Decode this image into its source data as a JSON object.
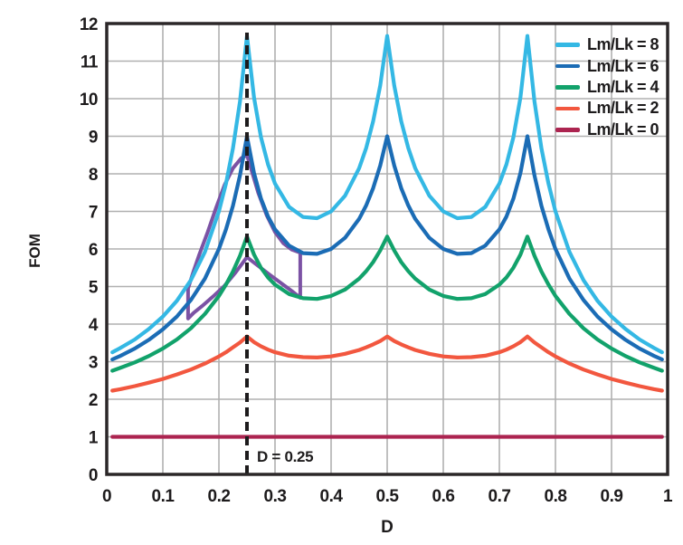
{
  "annotations": {
    "vline": {
      "x": 0.25,
      "label": "D = 0.25",
      "color": "#1d1b1c",
      "style": "dashed"
    },
    "highlight_region": {
      "color": "#7B52A4",
      "points": [
        [
          0.145,
          4.95
        ],
        [
          0.155,
          5.42
        ],
        [
          0.165,
          5.85
        ],
        [
          0.18,
          6.45
        ],
        [
          0.195,
          7.1
        ],
        [
          0.21,
          7.7
        ],
        [
          0.225,
          8.15
        ],
        [
          0.24,
          8.42
        ],
        [
          0.25,
          8.5
        ],
        [
          0.258,
          8.1
        ],
        [
          0.27,
          7.5
        ],
        [
          0.285,
          6.9
        ],
        [
          0.3,
          6.45
        ],
        [
          0.315,
          6.15
        ],
        [
          0.33,
          5.98
        ],
        [
          0.345,
          5.9
        ],
        [
          0.345,
          4.7
        ],
        [
          0.33,
          4.88
        ],
        [
          0.31,
          5.1
        ],
        [
          0.29,
          5.32
        ],
        [
          0.27,
          5.55
        ],
        [
          0.25,
          5.78
        ],
        [
          0.23,
          5.38
        ],
        [
          0.21,
          5.02
        ],
        [
          0.19,
          4.74
        ],
        [
          0.17,
          4.48
        ],
        [
          0.155,
          4.3
        ],
        [
          0.145,
          4.15
        ]
      ]
    }
  },
  "style": {
    "grid_color": "#b0b0b0",
    "border_color": "#2b2728",
    "text_color": "#1d1b1c",
    "background": "#ffffff"
  },
  "chart_data": {
    "type": "line",
    "title": "",
    "xlabel": "D",
    "ylabel": "FOM",
    "xlim": [
      0,
      1
    ],
    "ylim": [
      0,
      12
    ],
    "grid": true,
    "legend_position": "top-right",
    "x_ticks": {
      "values": [
        0,
        0.1,
        0.2,
        0.3,
        0.4,
        0.5,
        0.6,
        0.7,
        0.8,
        0.9,
        1
      ],
      "labels": [
        "0",
        "0.1",
        "0.2",
        "0.3",
        "0.4",
        "0.5",
        "0.6",
        "0.7",
        "0.8",
        "0.9",
        "1"
      ]
    },
    "y_ticks": {
      "values": [
        0,
        1,
        2,
        3,
        4,
        5,
        6,
        7,
        8,
        9,
        10,
        11,
        12
      ],
      "labels": [
        "0",
        "1",
        "2",
        "3",
        "4",
        "5",
        "6",
        "7",
        "8",
        "9",
        "10",
        "11",
        "12"
      ]
    },
    "series": [
      {
        "name": "Lm/Lk = 8",
        "color": "#34B8E4",
        "points": [
          [
            0.01,
            3.25
          ],
          [
            0.025,
            3.37
          ],
          [
            0.05,
            3.59
          ],
          [
            0.075,
            3.87
          ],
          [
            0.1,
            4.2
          ],
          [
            0.125,
            4.62
          ],
          [
            0.15,
            5.17
          ],
          [
            0.175,
            5.92
          ],
          [
            0.2,
            7.0
          ],
          [
            0.2125,
            7.74
          ],
          [
            0.225,
            8.68
          ],
          [
            0.2375,
            9.93
          ],
          [
            0.25,
            11.67
          ],
          [
            0.2625,
            10.03
          ],
          [
            0.275,
            8.97
          ],
          [
            0.2875,
            8.25
          ],
          [
            0.3,
            7.74
          ],
          [
            0.325,
            7.12
          ],
          [
            0.35,
            6.85
          ],
          [
            0.375,
            6.82
          ],
          [
            0.4,
            7.0
          ],
          [
            0.425,
            7.42
          ],
          [
            0.45,
            8.15
          ],
          [
            0.4625,
            8.69
          ],
          [
            0.475,
            9.4
          ],
          [
            0.4875,
            10.35
          ],
          [
            0.5,
            11.67
          ],
          [
            0.5125,
            10.35
          ],
          [
            0.525,
            9.4
          ],
          [
            0.5375,
            8.69
          ],
          [
            0.55,
            8.15
          ],
          [
            0.575,
            7.42
          ],
          [
            0.6,
            7.0
          ],
          [
            0.625,
            6.82
          ],
          [
            0.65,
            6.85
          ],
          [
            0.675,
            7.12
          ],
          [
            0.7,
            7.74
          ],
          [
            0.7125,
            8.25
          ],
          [
            0.725,
            8.97
          ],
          [
            0.7375,
            10.03
          ],
          [
            0.75,
            11.67
          ],
          [
            0.7625,
            9.93
          ],
          [
            0.775,
            8.68
          ],
          [
            0.7875,
            7.74
          ],
          [
            0.8,
            7.0
          ],
          [
            0.825,
            5.92
          ],
          [
            0.85,
            5.17
          ],
          [
            0.875,
            4.62
          ],
          [
            0.9,
            4.2
          ],
          [
            0.925,
            3.87
          ],
          [
            0.95,
            3.59
          ],
          [
            0.975,
            3.37
          ],
          [
            0.99,
            3.25
          ]
        ]
      },
      {
        "name": "Lm/Lk = 6",
        "color": "#1B6CB5",
        "points": [
          [
            0.01,
            3.06
          ],
          [
            0.025,
            3.16
          ],
          [
            0.05,
            3.35
          ],
          [
            0.075,
            3.58
          ],
          [
            0.1,
            3.86
          ],
          [
            0.125,
            4.2
          ],
          [
            0.15,
            4.64
          ],
          [
            0.175,
            5.21
          ],
          [
            0.2,
            6.0
          ],
          [
            0.2125,
            6.52
          ],
          [
            0.225,
            7.15
          ],
          [
            0.2375,
            7.96
          ],
          [
            0.25,
            9.0
          ],
          [
            0.2625,
            8.02
          ],
          [
            0.275,
            7.34
          ],
          [
            0.2875,
            6.86
          ],
          [
            0.3,
            6.52
          ],
          [
            0.325,
            6.09
          ],
          [
            0.35,
            5.89
          ],
          [
            0.375,
            5.87
          ],
          [
            0.4,
            6.0
          ],
          [
            0.425,
            6.3
          ],
          [
            0.45,
            6.8
          ],
          [
            0.4625,
            7.16
          ],
          [
            0.475,
            7.62
          ],
          [
            0.4875,
            8.22
          ],
          [
            0.5,
            9.0
          ],
          [
            0.5125,
            8.22
          ],
          [
            0.525,
            7.62
          ],
          [
            0.5375,
            7.16
          ],
          [
            0.55,
            6.8
          ],
          [
            0.575,
            6.3
          ],
          [
            0.6,
            6.0
          ],
          [
            0.625,
            5.87
          ],
          [
            0.65,
            5.89
          ],
          [
            0.675,
            6.09
          ],
          [
            0.7,
            6.52
          ],
          [
            0.7125,
            6.86
          ],
          [
            0.725,
            7.34
          ],
          [
            0.7375,
            8.02
          ],
          [
            0.75,
            9.0
          ],
          [
            0.7625,
            7.96
          ],
          [
            0.775,
            7.15
          ],
          [
            0.7875,
            6.52
          ],
          [
            0.8,
            6.0
          ],
          [
            0.825,
            5.21
          ],
          [
            0.85,
            4.64
          ],
          [
            0.875,
            4.2
          ],
          [
            0.9,
            3.86
          ],
          [
            0.925,
            3.58
          ],
          [
            0.95,
            3.35
          ],
          [
            0.975,
            3.16
          ],
          [
            0.99,
            3.06
          ]
        ]
      },
      {
        "name": "Lm/Lk = 4",
        "color": "#12A26B",
        "points": [
          [
            0.01,
            2.76
          ],
          [
            0.025,
            2.84
          ],
          [
            0.05,
            2.98
          ],
          [
            0.075,
            3.15
          ],
          [
            0.1,
            3.35
          ],
          [
            0.125,
            3.59
          ],
          [
            0.15,
            3.89
          ],
          [
            0.175,
            4.27
          ],
          [
            0.2,
            4.75
          ],
          [
            0.2125,
            5.05
          ],
          [
            0.225,
            5.4
          ],
          [
            0.2375,
            5.82
          ],
          [
            0.25,
            6.33
          ],
          [
            0.2625,
            5.85
          ],
          [
            0.275,
            5.5
          ],
          [
            0.2875,
            5.24
          ],
          [
            0.3,
            5.05
          ],
          [
            0.325,
            4.8
          ],
          [
            0.35,
            4.69
          ],
          [
            0.375,
            4.67
          ],
          [
            0.4,
            4.75
          ],
          [
            0.425,
            4.92
          ],
          [
            0.45,
            5.21
          ],
          [
            0.4625,
            5.41
          ],
          [
            0.475,
            5.65
          ],
          [
            0.4875,
            5.96
          ],
          [
            0.5,
            6.33
          ],
          [
            0.5125,
            5.96
          ],
          [
            0.525,
            5.65
          ],
          [
            0.5375,
            5.41
          ],
          [
            0.55,
            5.21
          ],
          [
            0.575,
            4.92
          ],
          [
            0.6,
            4.75
          ],
          [
            0.625,
            4.67
          ],
          [
            0.65,
            4.69
          ],
          [
            0.675,
            4.8
          ],
          [
            0.7,
            5.05
          ],
          [
            0.7125,
            5.24
          ],
          [
            0.725,
            5.5
          ],
          [
            0.7375,
            5.85
          ],
          [
            0.75,
            6.33
          ],
          [
            0.7625,
            5.82
          ],
          [
            0.775,
            5.4
          ],
          [
            0.7875,
            5.05
          ],
          [
            0.8,
            4.75
          ],
          [
            0.825,
            4.27
          ],
          [
            0.85,
            3.89
          ],
          [
            0.875,
            3.59
          ],
          [
            0.9,
            3.35
          ],
          [
            0.925,
            3.15
          ],
          [
            0.95,
            2.98
          ],
          [
            0.975,
            2.84
          ],
          [
            0.99,
            2.76
          ]
        ]
      },
      {
        "name": "Lm/Lk = 2",
        "color": "#F2573F",
        "points": [
          [
            0.01,
            2.23
          ],
          [
            0.025,
            2.27
          ],
          [
            0.05,
            2.35
          ],
          [
            0.075,
            2.44
          ],
          [
            0.1,
            2.54
          ],
          [
            0.125,
            2.66
          ],
          [
            0.15,
            2.79
          ],
          [
            0.175,
            2.95
          ],
          [
            0.2,
            3.14
          ],
          [
            0.2125,
            3.25
          ],
          [
            0.225,
            3.38
          ],
          [
            0.2375,
            3.51
          ],
          [
            0.25,
            3.67
          ],
          [
            0.2625,
            3.52
          ],
          [
            0.275,
            3.41
          ],
          [
            0.2875,
            3.32
          ],
          [
            0.3,
            3.25
          ],
          [
            0.325,
            3.16
          ],
          [
            0.35,
            3.12
          ],
          [
            0.375,
            3.11
          ],
          [
            0.4,
            3.14
          ],
          [
            0.425,
            3.21
          ],
          [
            0.45,
            3.31
          ],
          [
            0.4625,
            3.38
          ],
          [
            0.475,
            3.46
          ],
          [
            0.4875,
            3.55
          ],
          [
            0.5,
            3.67
          ],
          [
            0.5125,
            3.55
          ],
          [
            0.525,
            3.46
          ],
          [
            0.5375,
            3.38
          ],
          [
            0.55,
            3.31
          ],
          [
            0.575,
            3.21
          ],
          [
            0.6,
            3.14
          ],
          [
            0.625,
            3.11
          ],
          [
            0.65,
            3.12
          ],
          [
            0.675,
            3.16
          ],
          [
            0.7,
            3.25
          ],
          [
            0.7125,
            3.32
          ],
          [
            0.725,
            3.41
          ],
          [
            0.7375,
            3.52
          ],
          [
            0.75,
            3.67
          ],
          [
            0.7625,
            3.51
          ],
          [
            0.775,
            3.38
          ],
          [
            0.7875,
            3.25
          ],
          [
            0.8,
            3.14
          ],
          [
            0.825,
            2.95
          ],
          [
            0.85,
            2.79
          ],
          [
            0.875,
            2.66
          ],
          [
            0.9,
            2.54
          ],
          [
            0.925,
            2.44
          ],
          [
            0.95,
            2.35
          ],
          [
            0.975,
            2.27
          ],
          [
            0.99,
            2.23
          ]
        ]
      },
      {
        "name": "Lm/Lk = 0",
        "color": "#AC2450",
        "points": [
          [
            0.01,
            1.0
          ],
          [
            0.25,
            1.0
          ],
          [
            0.5,
            1.0
          ],
          [
            0.75,
            1.0
          ],
          [
            0.99,
            1.0
          ]
        ]
      }
    ]
  }
}
